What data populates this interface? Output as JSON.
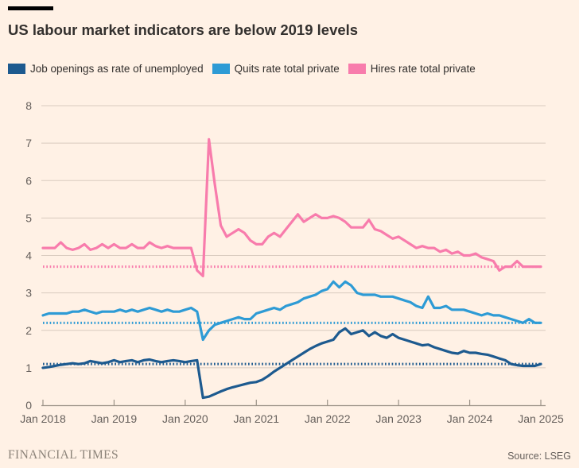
{
  "page": {
    "background": "#FFF1E5"
  },
  "header": {
    "title": "US labour market indicators are below 2019 levels"
  },
  "legend": [
    {
      "label": "Job openings as rate of unemployed",
      "color": "#1D5A8F"
    },
    {
      "label": "Quits rate total private",
      "color": "#2E9BD5"
    },
    {
      "label": "Hires rate total private",
      "color": "#F87CAC"
    }
  ],
  "footer": {
    "brand": "FINANCIAL TIMES",
    "source": "Source: LSEG"
  },
  "chart_data": {
    "type": "line",
    "title": "US labour market indicators are below 2019 levels",
    "xlabel": "",
    "ylabel": "",
    "ylim": [
      0,
      8
    ],
    "y_ticks": [
      0,
      1,
      2,
      3,
      4,
      5,
      6,
      7,
      8
    ],
    "grid": true,
    "legend_position": "top",
    "x_unit": "month",
    "x_tick_labels": [
      "Jan 2018",
      "Jan 2019",
      "Jan 2020",
      "Jan 2021",
      "Jan 2022",
      "Jan 2023",
      "Jan 2024",
      "Jan 2025"
    ],
    "months_per_tick": 12,
    "series": [
      {
        "id": "job-openings",
        "name": "Job openings as rate of unemployed",
        "color": "#1D5A8F",
        "level_2019": 1.1,
        "values": [
          1.0,
          1.02,
          1.05,
          1.08,
          1.1,
          1.12,
          1.1,
          1.12,
          1.18,
          1.15,
          1.12,
          1.15,
          1.2,
          1.15,
          1.18,
          1.2,
          1.15,
          1.2,
          1.22,
          1.18,
          1.15,
          1.18,
          1.2,
          1.18,
          1.15,
          1.18,
          1.2,
          0.2,
          0.23,
          0.3,
          0.37,
          0.43,
          0.48,
          0.52,
          0.56,
          0.6,
          0.62,
          0.68,
          0.78,
          0.9,
          1.0,
          1.1,
          1.2,
          1.3,
          1.4,
          1.5,
          1.58,
          1.65,
          1.7,
          1.75,
          1.95,
          2.05,
          1.9,
          1.95,
          2.0,
          1.85,
          1.95,
          1.85,
          1.8,
          1.9,
          1.8,
          1.75,
          1.7,
          1.65,
          1.6,
          1.62,
          1.55,
          1.5,
          1.45,
          1.4,
          1.38,
          1.45,
          1.4,
          1.4,
          1.37,
          1.35,
          1.3,
          1.25,
          1.2,
          1.1,
          1.07,
          1.05,
          1.05,
          1.05,
          1.1
        ]
      },
      {
        "id": "quits-rate",
        "name": "Quits rate total private",
        "color": "#2E9BD5",
        "level_2019": 2.2,
        "values": [
          2.4,
          2.45,
          2.45,
          2.45,
          2.45,
          2.5,
          2.5,
          2.55,
          2.5,
          2.45,
          2.5,
          2.5,
          2.5,
          2.55,
          2.5,
          2.55,
          2.5,
          2.55,
          2.6,
          2.55,
          2.5,
          2.55,
          2.5,
          2.5,
          2.55,
          2.6,
          2.5,
          1.75,
          2.0,
          2.15,
          2.2,
          2.25,
          2.3,
          2.35,
          2.3,
          2.3,
          2.45,
          2.5,
          2.55,
          2.6,
          2.55,
          2.65,
          2.7,
          2.75,
          2.85,
          2.9,
          2.95,
          3.05,
          3.1,
          3.3,
          3.15,
          3.3,
          3.2,
          3.0,
          2.95,
          2.95,
          2.95,
          2.9,
          2.9,
          2.9,
          2.85,
          2.8,
          2.75,
          2.65,
          2.6,
          2.9,
          2.6,
          2.6,
          2.65,
          2.55,
          2.55,
          2.55,
          2.5,
          2.45,
          2.4,
          2.45,
          2.4,
          2.4,
          2.35,
          2.3,
          2.25,
          2.2,
          2.3,
          2.2,
          2.2
        ]
      },
      {
        "id": "hires-rate",
        "name": "Hires rate total private",
        "color": "#F87CAC",
        "level_2019": 3.7,
        "values": [
          4.2,
          4.2,
          4.2,
          4.35,
          4.2,
          4.15,
          4.2,
          4.3,
          4.15,
          4.2,
          4.3,
          4.2,
          4.3,
          4.2,
          4.2,
          4.3,
          4.2,
          4.2,
          4.35,
          4.25,
          4.2,
          4.25,
          4.2,
          4.2,
          4.2,
          4.2,
          3.6,
          3.45,
          7.1,
          5.9,
          4.8,
          4.5,
          4.6,
          4.7,
          4.6,
          4.4,
          4.3,
          4.3,
          4.5,
          4.6,
          4.5,
          4.7,
          4.9,
          5.1,
          4.9,
          5.0,
          5.1,
          5.0,
          5.0,
          5.05,
          5.0,
          4.9,
          4.75,
          4.75,
          4.75,
          4.95,
          4.7,
          4.65,
          4.55,
          4.45,
          4.5,
          4.4,
          4.3,
          4.2,
          4.25,
          4.2,
          4.2,
          4.1,
          4.15,
          4.05,
          4.1,
          4.0,
          4.0,
          4.05,
          3.95,
          3.9,
          3.85,
          3.6,
          3.7,
          3.7,
          3.85,
          3.7,
          3.7,
          3.7,
          3.7
        ]
      }
    ],
    "styles": {
      "gridline_color": "#D9CBBF",
      "axis_color": "#9B9287",
      "label_color": "#66605C"
    }
  }
}
